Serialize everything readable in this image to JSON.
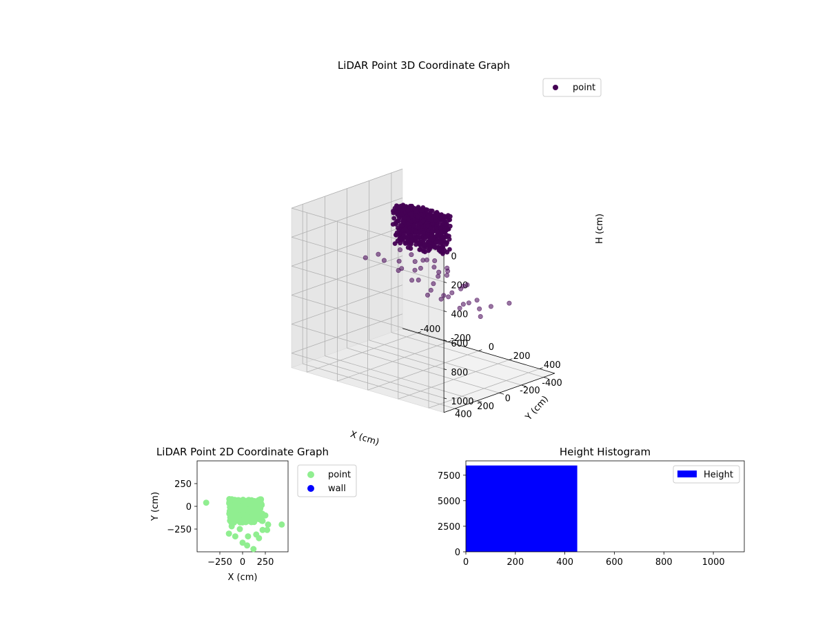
{
  "chart_data": [
    {
      "type": "scatter",
      "projection": "3d",
      "title": "LiDAR Point 3D Coordinate Graph",
      "xlabel": "X (cm)",
      "ylabel": "Y (cm)",
      "zlabel": "H (cm)",
      "xlim": [
        -500,
        500
      ],
      "ylim": [
        -500,
        500
      ],
      "zlim": [
        1100,
        0
      ],
      "zaxis_inverted": true,
      "xticks": [
        -400,
        -200,
        0,
        200,
        400
      ],
      "yticks": [
        -400,
        -200,
        0,
        200,
        400
      ],
      "zticks": [
        0,
        200,
        400,
        600,
        800,
        1000
      ],
      "grid": true,
      "legend": {
        "position": "top-right",
        "entries": [
          {
            "label": "point",
            "color": "#440154"
          }
        ]
      },
      "series": [
        {
          "name": "point",
          "color": "#440154",
          "dense_cluster": {
            "x_range": [
              -150,
              150
            ],
            "y_range": [
              -50,
              80
            ],
            "h_range": [
              0,
              250
            ]
          },
          "points": [
            {
              "x": -350,
              "y": 40,
              "h": 420
            },
            {
              "x": -300,
              "y": -60,
              "h": 450
            },
            {
              "x": -280,
              "y": 20,
              "h": 380
            },
            {
              "x": -250,
              "y": -120,
              "h": 520
            },
            {
              "x": -220,
              "y": -200,
              "h": 600
            },
            {
              "x": -200,
              "y": -80,
              "h": 480
            },
            {
              "x": -180,
              "y": -30,
              "h": 410
            },
            {
              "x": -160,
              "y": -260,
              "h": 700
            },
            {
              "x": -140,
              "y": -150,
              "h": 560
            },
            {
              "x": -120,
              "y": -90,
              "h": 470
            },
            {
              "x": -100,
              "y": -300,
              "h": 720
            },
            {
              "x": -80,
              "y": -180,
              "h": 620
            },
            {
              "x": -60,
              "y": -60,
              "h": 430
            },
            {
              "x": -40,
              "y": -240,
              "h": 660
            },
            {
              "x": -20,
              "y": -120,
              "h": 540
            },
            {
              "x": 0,
              "y": -330,
              "h": 760
            },
            {
              "x": 20,
              "y": -200,
              "h": 640
            },
            {
              "x": 40,
              "y": -80,
              "h": 460
            },
            {
              "x": 60,
              "y": -280,
              "h": 700
            },
            {
              "x": 80,
              "y": -150,
              "h": 580
            },
            {
              "x": 100,
              "y": -380,
              "h": 800
            },
            {
              "x": 120,
              "y": -50,
              "h": 420
            },
            {
              "x": 140,
              "y": -220,
              "h": 650
            },
            {
              "x": 160,
              "y": -120,
              "h": 520
            },
            {
              "x": 180,
              "y": -260,
              "h": 690
            },
            {
              "x": 200,
              "y": -90,
              "h": 480
            },
            {
              "x": 230,
              "y": -170,
              "h": 590
            },
            {
              "x": 260,
              "y": -40,
              "h": 440
            },
            {
              "x": 300,
              "y": -200,
              "h": 620
            },
            {
              "x": 420,
              "y": -200,
              "h": 560
            },
            {
              "x": -130,
              "y": 30,
              "h": 300
            },
            {
              "x": -70,
              "y": 10,
              "h": 320
            },
            {
              "x": 10,
              "y": -20,
              "h": 340
            },
            {
              "x": 90,
              "y": 20,
              "h": 310
            },
            {
              "x": 150,
              "y": -10,
              "h": 350
            },
            {
              "x": -30,
              "y": -40,
              "h": 360
            },
            {
              "x": 50,
              "y": -30,
              "h": 380
            },
            {
              "x": -90,
              "y": -50,
              "h": 390
            },
            {
              "x": 110,
              "y": -70,
              "h": 400
            },
            {
              "x": 30,
              "y": -100,
              "h": 440
            }
          ]
        }
      ]
    },
    {
      "type": "scatter",
      "title": "LiDAR Point 2D Coordinate Graph",
      "xlabel": "X (cm)",
      "ylabel": "Y (cm)",
      "xlim": [
        -500,
        500
      ],
      "ylim": [
        -500,
        500
      ],
      "xticks": [
        -250,
        0,
        250
      ],
      "yticks": [
        250,
        0,
        -250
      ],
      "grid": false,
      "legend": {
        "position": "outside-right",
        "entries": [
          {
            "label": "point",
            "color": "#90ee90"
          },
          {
            "label": "wall",
            "color": "#0000ff"
          }
        ]
      },
      "series": [
        {
          "name": "point",
          "color": "#90ee90",
          "dense_cluster": {
            "x_range": [
              -150,
              220
            ],
            "y_range": [
              -180,
              80
            ]
          },
          "points": [
            {
              "x": -400,
              "y": 40
            },
            {
              "x": 430,
              "y": -200
            },
            {
              "x": -150,
              "y": -300
            },
            {
              "x": -120,
              "y": -220
            },
            {
              "x": -80,
              "y": -330
            },
            {
              "x": 0,
              "y": -400
            },
            {
              "x": 50,
              "y": -430
            },
            {
              "x": 120,
              "y": -470
            },
            {
              "x": 150,
              "y": -310
            },
            {
              "x": 220,
              "y": -260
            },
            {
              "x": 280,
              "y": -200
            },
            {
              "x": 270,
              "y": -260
            },
            {
              "x": 60,
              "y": -330
            },
            {
              "x": -30,
              "y": -250
            },
            {
              "x": 180,
              "y": -350
            },
            {
              "x": 250,
              "y": -100
            }
          ]
        },
        {
          "name": "wall",
          "color": "#0000ff",
          "points": []
        }
      ]
    },
    {
      "type": "bar",
      "title": "Height Histogram",
      "xlabel": "",
      "ylabel": "",
      "xlim": [
        0,
        1125
      ],
      "ylim": [
        0,
        8900
      ],
      "xticks": [
        0,
        200,
        400,
        600,
        800,
        1000
      ],
      "yticks": [
        0,
        2500,
        5000,
        7500
      ],
      "grid": false,
      "legend": {
        "position": "top-right",
        "entries": [
          {
            "label": "Height",
            "color": "#0000ff"
          }
        ]
      },
      "series": [
        {
          "name": "Height",
          "color": "#0000ff",
          "bins": [
            {
              "x0": 0,
              "x1": 450,
              "count": 8450
            }
          ]
        }
      ]
    }
  ]
}
